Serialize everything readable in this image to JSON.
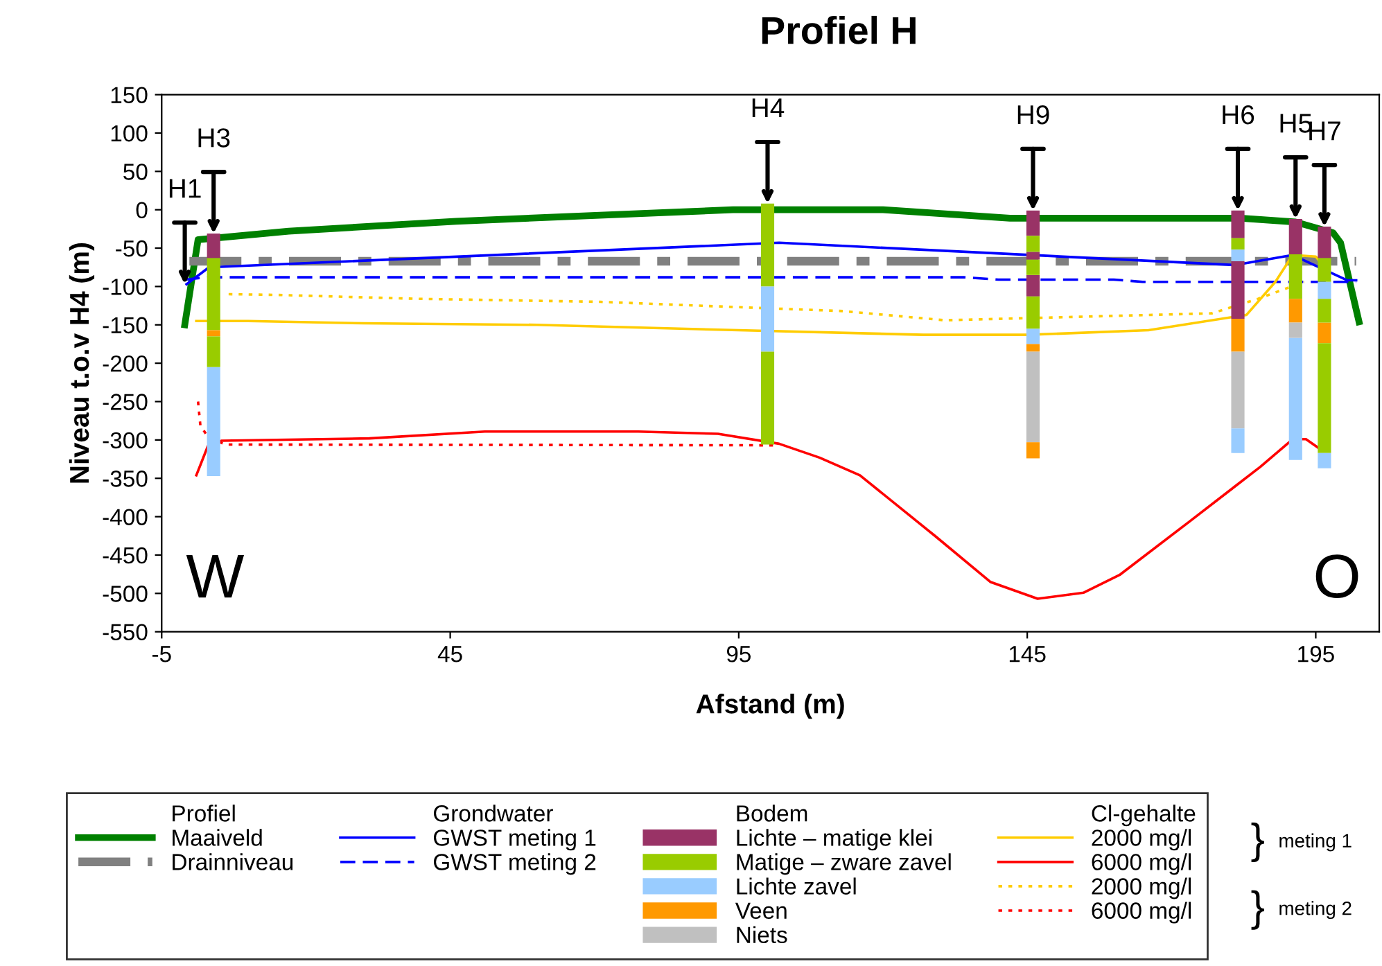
{
  "chart_data": {
    "type": "line",
    "title": "Profiel H",
    "xlabel": "Afstand (m)",
    "ylabel": "Niveau t.o.v H4 (m)",
    "xlim": [
      -5,
      206
    ],
    "xticks": [
      -5,
      45,
      95,
      145,
      195
    ],
    "ylim": [
      -550,
      150
    ],
    "yticks": [
      -550,
      -500,
      -450,
      -400,
      -350,
      -300,
      -250,
      -200,
      -150,
      -100,
      -50,
      0,
      50,
      100,
      150
    ],
    "grid": false,
    "legend": "bottom",
    "marker": "none",
    "series": [
      {
        "name": "Maaiveld",
        "color": "#008000",
        "line_style": "solid",
        "x": [
          -1,
          1.3,
          17,
          46,
          84,
          94,
          120,
          142,
          182,
          191.5,
          198,
          199.3,
          202.5
        ],
        "values": [
          -150,
          -39,
          -28,
          -15,
          -3,
          0,
          0,
          -11,
          -11,
          -16,
          -30,
          -43,
          -146
        ]
      },
      {
        "name": "Drainniveau",
        "color": "#808080",
        "line_style": "dashed",
        "x": [
          -0.2,
          202
        ],
        "values": [
          -67,
          -67
        ]
      },
      {
        "name": "GWST meting 1",
        "color": "#0000ff",
        "line_style": "solid",
        "x": [
          -0.7,
          3.2,
          102,
          181,
          191,
          200.5,
          202
        ],
        "values": [
          -97,
          -75,
          -43,
          -72,
          -59,
          -92,
          -92
        ]
      },
      {
        "name": "GWST meting 2",
        "color": "#0000ff",
        "line_style": "dashed",
        "x": [
          -1,
          3,
          134,
          140,
          160,
          165,
          202
        ],
        "values": [
          -91,
          -88,
          -88,
          -91,
          -91,
          -94,
          -94
        ]
      },
      {
        "name": "Lichte – matige klei",
        "type": "bar",
        "color": "#993366",
        "x": [
          4,
          146,
          181.5,
          191.5,
          196.5
        ],
        "base": [
          -63,
          -34,
          -37,
          -58,
          -63
        ],
        "values": [
          32,
          33,
          36,
          46,
          41
        ]
      },
      {
        "name": "Matige – zware zavel",
        "type": "bar",
        "color": "#99cc00",
        "x": [
          4,
          100,
          146,
          181.5,
          191.5,
          196.5
        ],
        "base": [
          -157,
          -100,
          -55,
          -52,
          -116,
          -94
        ],
        "values": [
          94,
          108,
          21,
          15,
          58,
          31
        ]
      },
      {
        "name": "Lichte zavel",
        "type": "bar",
        "color": "#99ccff",
        "x": [
          4,
          100,
          146,
          181.5,
          191.5,
          196.5
        ],
        "base": [
          -347,
          -185,
          -175,
          -67,
          -326,
          -116
        ],
        "values": [
          142,
          85,
          20,
          15,
          159,
          22
        ]
      },
      {
        "name": "Veen",
        "type": "bar",
        "color": "#ff9900",
        "x": [
          4,
          146,
          181.5,
          191.5,
          196.5
        ],
        "base": [
          -165,
          -185,
          -185,
          -147,
          -174
        ],
        "values": [
          8,
          10,
          43,
          31,
          27
        ]
      },
      {
        "name": "Niets",
        "type": "bar",
        "color": "#c0c0c0",
        "x": [
          146,
          181.5,
          191.5
        ],
        "base": [
          -303,
          -285,
          -167
        ],
        "values": [
          118,
          100,
          20
        ]
      },
      {
        "name": "2000 mg/l",
        "color": "#ffcc00",
        "line_style": "solid",
        "x": [
          1,
          10,
          30,
          60,
          95,
          127,
          145,
          166,
          183,
          188,
          191,
          195,
          196.5
        ],
        "values": [
          -145,
          -145,
          -148,
          -150,
          -157,
          -163,
          -163,
          -157,
          -137,
          -94,
          -59,
          -61,
          -75
        ]
      },
      {
        "name": "6000 mg/l",
        "color": "#ff0000",
        "line_style": "solid",
        "x": [
          1,
          3,
          5.4,
          31,
          51,
          77.6,
          91.4,
          102,
          109,
          116,
          129,
          138.6,
          146.8,
          154.8,
          161,
          173,
          185.4,
          191,
          193.3,
          195.4
        ],
        "values": [
          -346,
          -308,
          -301,
          -298,
          -289,
          -289,
          -292,
          -305,
          -323,
          -346,
          -425,
          -485,
          -507,
          -499,
          -476,
          -407,
          -335,
          -299,
          -299,
          -310
        ]
      },
      {
        "name": "2000 mg/l",
        "color": "#ffcc00",
        "line_style": "dotted",
        "x": [
          6.6,
          15,
          39,
          71,
          98.6,
          113,
          130.7,
          177,
          185,
          193
        ],
        "values": [
          -110,
          -111,
          -116,
          -120,
          -128,
          -132,
          -144,
          -135,
          -116,
          -94
        ]
      },
      {
        "name": "6000 mg/l",
        "color": "#ff0000",
        "line_style": "dotted",
        "x": [
          1.3,
          1.7,
          3,
          6,
          102
        ],
        "values": [
          -250,
          -281,
          -296,
          -306,
          -307
        ]
      },
      {
        "type": "bar",
        "color": "#993366",
        "x": [
          146,
          181.5
        ],
        "base": [
          -65,
          -142
        ],
        "values": [
          10,
          75
        ]
      },
      {
        "type": "bar",
        "color": "#993366",
        "x": [
          146
        ],
        "base": [
          -113
        ],
        "values": [
          28
        ]
      },
      {
        "type": "bar",
        "color": "#99cc00",
        "x": [
          4,
          100,
          146,
          196.5
        ],
        "base": [
          -205,
          -306,
          -85,
          -147
        ],
        "values": [
          40,
          121,
          20,
          31
        ]
      },
      {
        "type": "bar",
        "color": "#99cc00",
        "x": [
          146,
          196.5
        ],
        "base": [
          -155,
          -317
        ],
        "values": [
          42,
          143
        ]
      },
      {
        "type": "bar",
        "color": "#99ccff",
        "x": [
          181.5,
          196.5
        ],
        "base": [
          -317,
          -337
        ],
        "values": [
          32,
          20
        ]
      },
      {
        "type": "bar",
        "color": "#ff9900",
        "x": [
          146
        ],
        "base": [
          -324
        ],
        "values": [
          21
        ]
      }
    ],
    "annotations": [
      "W",
      "O",
      "meting 1",
      "meting 2",
      "Profiel",
      "Grondwater",
      "Bodem",
      "Cl-gehalte",
      "}",
      "}",
      {
        "text": "H1",
        "x": -1,
        "y": -97
      },
      {
        "text": "H3",
        "x": 4,
        "y": -31
      },
      {
        "text": "H4",
        "x": 100,
        "y": 8
      },
      {
        "text": "H9",
        "x": 146,
        "y": -1
      },
      {
        "text": "H6",
        "x": 181.5,
        "y": -1
      },
      {
        "text": "H5",
        "x": 191.5,
        "y": -12
      },
      {
        "text": "H7",
        "x": 196.5,
        "y": -22
      }
    ]
  }
}
